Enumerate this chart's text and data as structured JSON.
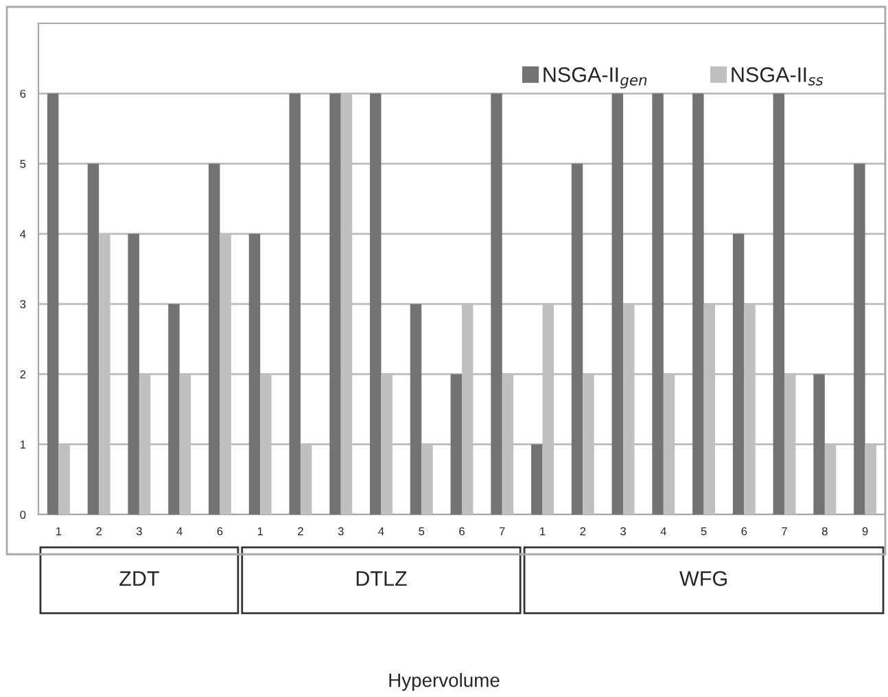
{
  "chart_data": {
    "type": "bar",
    "categories": [
      "1",
      "2",
      "3",
      "4",
      "6",
      "1",
      "2",
      "3",
      "4",
      "5",
      "6",
      "7",
      "1",
      "2",
      "3",
      "4",
      "5",
      "6",
      "7",
      "8",
      "9"
    ],
    "series": [
      {
        "name": "NSGA-II$_{gen}$",
        "color": "#737373",
        "values": [
          6,
          5,
          4,
          3,
          5,
          4,
          6,
          6,
          6,
          3,
          2,
          6,
          1,
          5,
          6,
          6,
          6,
          4,
          6,
          2,
          5
        ]
      },
      {
        "name": "NSGA-II$_{ss}$",
        "color": "#c0c0c0",
        "values": [
          1,
          4,
          2,
          2,
          4,
          2,
          1,
          6,
          2,
          1,
          3,
          2,
          3,
          2,
          3,
          2,
          3,
          3,
          2,
          1,
          1
        ]
      }
    ],
    "annotations": [
      "ZDT",
      "DTLZ",
      "WFG",
      "Hypervolume"
    ],
    "ylim": [
      0,
      7
    ],
    "yticks": [
      0,
      1,
      2,
      3,
      4,
      5,
      6
    ],
    "grid": "y",
    "legend": "top right"
  }
}
